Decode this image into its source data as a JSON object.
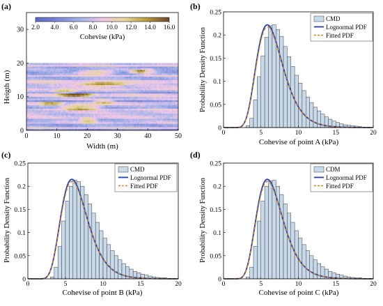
{
  "panel_labels": [
    "(a)",
    "(b)",
    "(c)",
    "(d)"
  ],
  "colors": {
    "histogram_fill": "#c8d9ea",
    "histogram_edge": "#3a3a3a",
    "lognormal": "#2a3ea8",
    "fitted": "#c8862a",
    "colormap": [
      "#5e66c8",
      "#7b88d8",
      "#a6b3e8",
      "#f0c6ea",
      "#e5d79a",
      "#b89a40",
      "#6b4a2a"
    ]
  },
  "chart_data": [
    {
      "type": "heatmap",
      "panel": "(a)",
      "xlabel": "Width (m)",
      "ylabel": "Heigth (m)",
      "xlim": [
        0,
        50
      ],
      "ylim": [
        0,
        35
      ],
      "field_extent": {
        "x": [
          0,
          50
        ],
        "y": [
          0,
          20
        ]
      },
      "x_ticks": [
        "0",
        "10",
        "20",
        "30",
        "40",
        "50"
      ],
      "y_ticks": [
        "0",
        "10",
        "20",
        "30"
      ],
      "colorbar": {
        "label": "Cohevise (kPa)",
        "range": [
          2,
          16
        ],
        "ticks": [
          "2.0",
          "4.0",
          "6.0",
          "8.0",
          "10.0",
          "12.0",
          "14.0",
          "16.0"
        ]
      }
    },
    {
      "type": "bar",
      "panel": "(b)",
      "xlabel": "Cohevise of point A (kPa)",
      "ylabel": "Probability Density Function",
      "xlim": [
        0,
        20
      ],
      "ylim": [
        0,
        0.25
      ],
      "x_ticks": [
        "0",
        "5",
        "10",
        "15",
        "20"
      ],
      "y_ticks": [
        "0",
        "0.05",
        "0.1",
        "0.15",
        "0.2",
        "0.25"
      ],
      "bin_start": 0,
      "bin_width": 0.5,
      "values": [
        0,
        0,
        0,
        0,
        0,
        0,
        0.004,
        0.02,
        0.06,
        0.11,
        0.155,
        0.195,
        0.22,
        0.222,
        0.212,
        0.197,
        0.175,
        0.153,
        0.132,
        0.113,
        0.096,
        0.08,
        0.066,
        0.054,
        0.044,
        0.036,
        0.029,
        0.023,
        0.018,
        0.014,
        0.011,
        0.008,
        0.006,
        0.005,
        0.004,
        0.003,
        0.002,
        0.001,
        0.001,
        0.001
      ],
      "curves": {
        "lognormal_median": 6.4,
        "lognormal_sigma": 0.3,
        "peak": 0.222
      },
      "legend": {
        "position": "top-right",
        "entries": [
          "CMD",
          "Lognormal PDF",
          "Fitted PDF"
        ]
      }
    },
    {
      "type": "bar",
      "panel": "(c)",
      "xlabel": "Cohevise of point B (kPa)",
      "ylabel": "Probability Density Function",
      "xlim": [
        0,
        20
      ],
      "ylim": [
        0,
        0.25
      ],
      "x_ticks": [
        "0",
        "5",
        "10",
        "15",
        "20"
      ],
      "y_ticks": [
        "0",
        "0.05",
        "0.1",
        "0.15",
        "0.2",
        "0.25"
      ],
      "bin_start": 0,
      "bin_width": 0.5,
      "values": [
        0,
        0,
        0,
        0,
        0,
        0,
        0.004,
        0.025,
        0.07,
        0.125,
        0.168,
        0.2,
        0.213,
        0.21,
        0.2,
        0.182,
        0.162,
        0.142,
        0.122,
        0.104,
        0.088,
        0.074,
        0.061,
        0.05,
        0.041,
        0.033,
        0.026,
        0.021,
        0.016,
        0.013,
        0.01,
        0.008,
        0.006,
        0.004,
        0.003,
        0.002,
        0.002,
        0.001,
        0.001,
        0.001
      ],
      "curves": {
        "lognormal_median": 6.4,
        "lognormal_sigma": 0.3,
        "peak": 0.215
      },
      "legend": {
        "position": "top-right",
        "entries": [
          "CMD",
          "Lognormal PDF",
          "Fitted PDF"
        ]
      }
    },
    {
      "type": "bar",
      "panel": "(d)",
      "xlabel": "Cohevise of point C (kPa)",
      "ylabel": "Probability Density Function",
      "xlim": [
        0,
        20
      ],
      "ylim": [
        0,
        0.25
      ],
      "x_ticks": [
        "0",
        "5",
        "10",
        "15",
        "20"
      ],
      "y_ticks": [
        "0",
        "0.05",
        "0.1",
        "0.15",
        "0.2",
        "0.25"
      ],
      "bin_start": 0,
      "bin_width": 0.5,
      "values": [
        0,
        0,
        0,
        0,
        0,
        0,
        0.004,
        0.025,
        0.07,
        0.125,
        0.168,
        0.2,
        0.211,
        0.213,
        0.2,
        0.182,
        0.162,
        0.142,
        0.122,
        0.104,
        0.088,
        0.074,
        0.061,
        0.05,
        0.041,
        0.033,
        0.026,
        0.021,
        0.016,
        0.013,
        0.01,
        0.008,
        0.006,
        0.004,
        0.003,
        0.002,
        0.002,
        0.001,
        0.001,
        0.001
      ],
      "curves": {
        "lognormal_median": 6.4,
        "lognormal_sigma": 0.3,
        "peak": 0.215
      },
      "legend": {
        "position": "top-right",
        "entries": [
          "CDM",
          "Lognormal PDF",
          "Fitted PDF"
        ]
      }
    }
  ]
}
